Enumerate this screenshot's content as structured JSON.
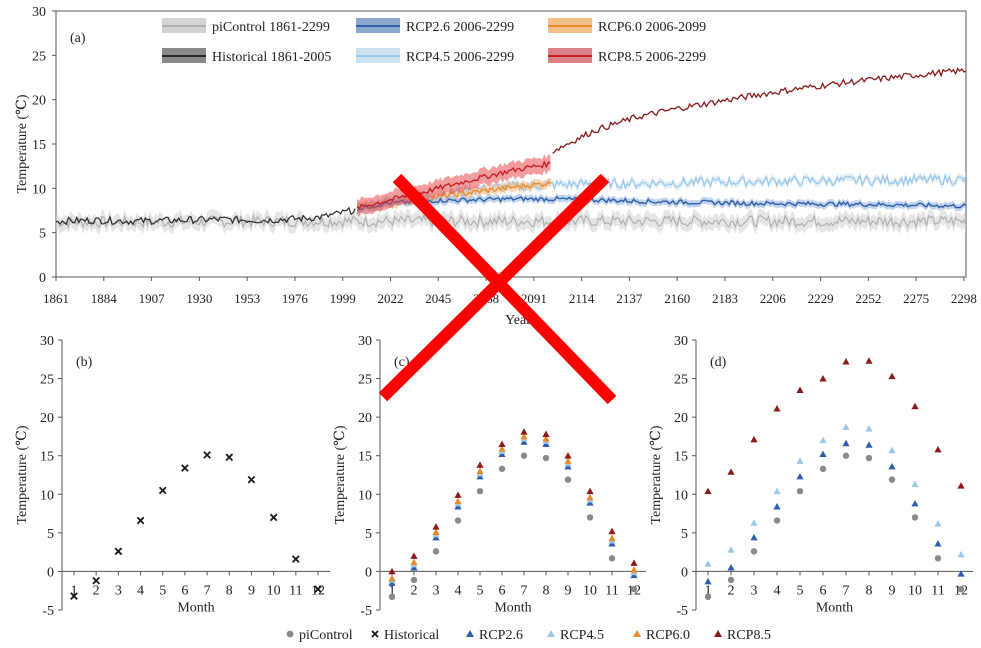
{
  "colors": {
    "picontrol": "#b0b0b0",
    "historical": "#2a2a2a",
    "rcp26": "#2e5fa8",
    "rcp45": "#9cc8e6",
    "rcp60": "#e88a2c",
    "rcp85": "#c01c22",
    "rcp85_dark": "#8b1a1a",
    "cross": "#ff0000"
  },
  "chart_data": [
    {
      "panel": "(a)",
      "type": "line",
      "ylabel": "Temperature (℃)",
      "xlabel": "Year",
      "ylim": [
        0,
        30
      ],
      "yticks": [
        0,
        5,
        10,
        15,
        20,
        25,
        30
      ],
      "xlim": [
        1861,
        2299
      ],
      "xticks": [
        1861,
        1884,
        1907,
        1930,
        1953,
        1976,
        1999,
        2022,
        2045,
        2068,
        2091,
        2114,
        2137,
        2160,
        2183,
        2206,
        2229,
        2252,
        2275,
        2298
      ],
      "legend": [
        "piControl 1861-2299",
        "Historical 1861-2005",
        "RCP2.6 2006-2299",
        "RCP4.5 2006-2299",
        "RCP6.0 2006-2099",
        "RCP8.5 2006-2299"
      ],
      "series": [
        {
          "name": "piControl 1861-2299",
          "x": [
            1861,
            1900,
            1950,
            2000,
            2050,
            2100,
            2150,
            2200,
            2250,
            2299
          ],
          "y": [
            6.2,
            6.2,
            6.3,
            6.3,
            6.3,
            6.3,
            6.3,
            6.3,
            6.3,
            6.3
          ]
        },
        {
          "name": "Historical 1861-2005",
          "x": [
            1861,
            1880,
            1900,
            1920,
            1940,
            1960,
            1980,
            1990,
            2000,
            2005
          ],
          "y": [
            6.3,
            6.4,
            6.3,
            6.4,
            6.5,
            6.4,
            6.6,
            6.8,
            7.3,
            7.6
          ]
        },
        {
          "name": "RCP2.6 2006-2299",
          "x": [
            2006,
            2020,
            2040,
            2060,
            2080,
            2100,
            2120,
            2150,
            2200,
            2250,
            2299
          ],
          "y": [
            7.7,
            8.3,
            8.6,
            8.7,
            8.8,
            8.8,
            8.7,
            8.5,
            8.3,
            8.2,
            8.0
          ]
        },
        {
          "name": "RCP4.5 2006-2299",
          "x": [
            2006,
            2020,
            2040,
            2060,
            2080,
            2100,
            2120,
            2150,
            2200,
            2250,
            2299
          ],
          "y": [
            7.7,
            8.5,
            9.2,
            9.8,
            10.2,
            10.4,
            10.5,
            10.6,
            10.8,
            10.9,
            11.0
          ]
        },
        {
          "name": "RCP6.0 2006-2099",
          "x": [
            2006,
            2020,
            2040,
            2060,
            2080,
            2099
          ],
          "y": [
            7.7,
            8.3,
            8.9,
            9.5,
            10.1,
            10.6
          ]
        },
        {
          "name": "RCP8.5 2006-2299",
          "x": [
            2006,
            2020,
            2040,
            2060,
            2080,
            2099,
            2100,
            2120,
            2140,
            2160,
            2180,
            2200,
            2220,
            2240,
            2260,
            2280,
            2299
          ],
          "y": [
            7.8,
            8.6,
            9.7,
            10.9,
            12.0,
            12.8,
            14.2,
            16.5,
            18.0,
            19.0,
            19.8,
            20.6,
            21.3,
            21.9,
            22.4,
            22.9,
            23.3
          ]
        }
      ]
    },
    {
      "panel": "(b)",
      "type": "scatter",
      "xlabel": "Month",
      "ylabel": "Temperature (℃)",
      "ylim": [
        -5,
        30
      ],
      "yticks": [
        -5,
        0,
        5,
        10,
        15,
        20,
        25,
        30
      ],
      "categories": [
        "1",
        "2",
        "3",
        "4",
        "5",
        "6",
        "7",
        "8",
        "9",
        "10",
        "11",
        "12"
      ],
      "series": [
        {
          "name": "Historical",
          "values": [
            -3.2,
            -1.2,
            2.6,
            6.6,
            10.5,
            13.4,
            15.1,
            14.8,
            11.9,
            7.0,
            1.6,
            -2.3
          ]
        }
      ]
    },
    {
      "panel": "(c)",
      "type": "scatter",
      "xlabel": "Month",
      "ylabel": "Temperature (℃)",
      "ylim": [
        -5,
        30
      ],
      "yticks": [
        -5,
        0,
        5,
        10,
        15,
        20,
        25,
        30
      ],
      "categories": [
        "1",
        "2",
        "3",
        "4",
        "5",
        "6",
        "7",
        "8",
        "9",
        "10",
        "11",
        "12"
      ],
      "series": [
        {
          "name": "piControl",
          "values": [
            -3.3,
            -1.1,
            2.6,
            6.6,
            10.4,
            13.3,
            15.0,
            14.7,
            11.9,
            7.0,
            1.7,
            -2.3
          ]
        },
        {
          "name": "RCP2.6",
          "values": [
            -1.5,
            0.5,
            4.4,
            8.4,
            12.3,
            15.2,
            16.8,
            16.5,
            13.6,
            8.9,
            3.6,
            -0.5
          ]
        },
        {
          "name": "RCP4.5",
          "values": [
            -1.1,
            0.9,
            4.8,
            8.8,
            12.7,
            15.6,
            17.2,
            16.9,
            14.0,
            9.3,
            4.0,
            -0.1
          ]
        },
        {
          "name": "RCP6.0",
          "values": [
            -0.9,
            1.2,
            5.1,
            9.1,
            13.0,
            15.9,
            17.5,
            17.2,
            14.3,
            9.6,
            4.3,
            0.2
          ]
        },
        {
          "name": "RCP8.5",
          "values": [
            0.0,
            2.0,
            5.8,
            9.9,
            13.8,
            16.5,
            18.1,
            17.8,
            15.0,
            10.4,
            5.2,
            1.1
          ]
        }
      ]
    },
    {
      "panel": "(d)",
      "type": "scatter",
      "xlabel": "Month",
      "ylabel": "Temperature (℃)",
      "ylim": [
        -5,
        30
      ],
      "yticks": [
        -5,
        0,
        5,
        10,
        15,
        20,
        25,
        30
      ],
      "categories": [
        "1",
        "2",
        "3",
        "4",
        "5",
        "6",
        "7",
        "8",
        "9",
        "10",
        "11",
        "12"
      ],
      "series": [
        {
          "name": "piControl",
          "values": [
            -3.3,
            -1.1,
            2.6,
            6.6,
            10.4,
            13.3,
            15.0,
            14.7,
            11.9,
            7.0,
            1.7,
            -2.3
          ]
        },
        {
          "name": "RCP2.6",
          "values": [
            -1.3,
            0.5,
            4.4,
            8.4,
            12.3,
            15.2,
            16.6,
            16.4,
            13.6,
            8.8,
            3.6,
            -0.3
          ]
        },
        {
          "name": "RCP4.5",
          "values": [
            1.0,
            2.8,
            6.3,
            10.4,
            14.3,
            17.0,
            18.7,
            18.5,
            15.7,
            11.3,
            6.2,
            2.2
          ]
        },
        {
          "name": "RCP8.5",
          "values": [
            10.4,
            12.9,
            17.1,
            21.1,
            23.5,
            25.0,
            27.2,
            27.3,
            25.3,
            21.4,
            15.8,
            11.1
          ]
        }
      ]
    }
  ],
  "panels": {
    "a_label": "(a)",
    "b_label": "(b)",
    "c_label": "(c)",
    "d_label": "(d)"
  },
  "bottom_legend": [
    "piControl",
    "Historical",
    "RCP2.6",
    "RCP4.5",
    "RCP6.0",
    "RCP8.5"
  ]
}
